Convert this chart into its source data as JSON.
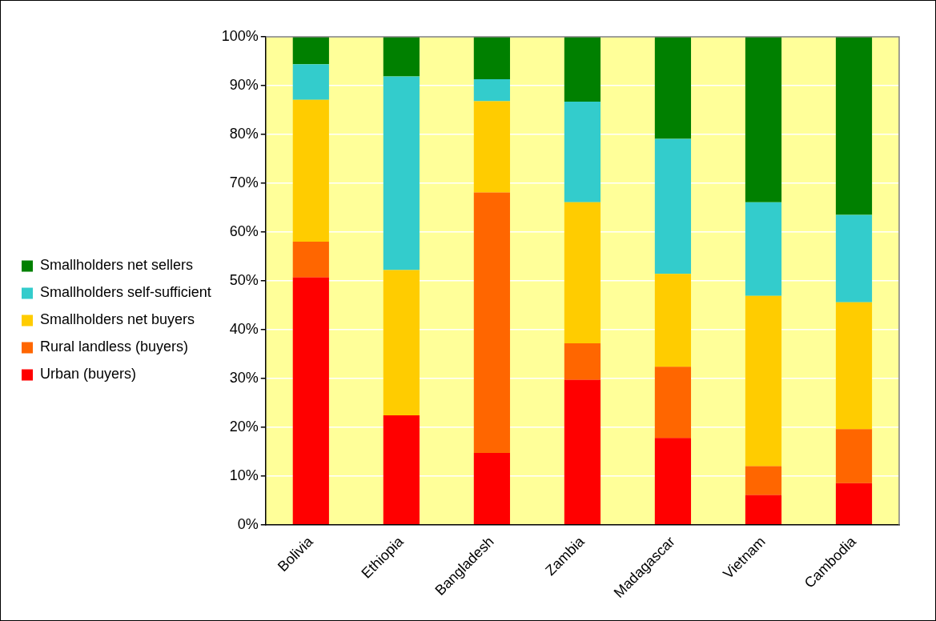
{
  "chart_data": {
    "type": "bar",
    "stacked": true,
    "categories": [
      "Bolivia",
      "Ethiopia",
      "Bangladesh",
      "Zambia",
      "Madagascar",
      "Vietnam",
      "Cambodia"
    ],
    "series": [
      {
        "name": "Urban (buyers)",
        "color": "#ff0000",
        "values": [
          50.7,
          22.4,
          14.7,
          29.7,
          17.8,
          6.1,
          8.5
        ]
      },
      {
        "name": "Rural landless (buyers)",
        "color": "#ff6600",
        "values": [
          7.3,
          0,
          53.4,
          7.5,
          14.6,
          5.9,
          11.1
        ]
      },
      {
        "name": "Smallholders net buyers",
        "color": "#ffcc00",
        "values": [
          29.1,
          29.8,
          18.7,
          28.9,
          19.0,
          34.9,
          26.0
        ]
      },
      {
        "name": "Smallholders self-sufficient",
        "color": "#33cccc",
        "values": [
          7.3,
          39.7,
          4.5,
          20.6,
          27.7,
          19.2,
          17.9
        ]
      },
      {
        "name": "Smallholders net sellers",
        "color": "#008000",
        "values": [
          5.6,
          8.1,
          8.7,
          13.3,
          20.9,
          33.9,
          36.5
        ]
      }
    ],
    "ylim": [
      0,
      100
    ],
    "yticks": [
      {
        "value": 0,
        "label": "0%"
      },
      {
        "value": 10,
        "label": "10%"
      },
      {
        "value": 20,
        "label": "20%"
      },
      {
        "value": 30,
        "label": "30%"
      },
      {
        "value": 40,
        "label": "40%"
      },
      {
        "value": 50,
        "label": "50%"
      },
      {
        "value": 60,
        "label": "60%"
      },
      {
        "value": 70,
        "label": "70%"
      },
      {
        "value": 80,
        "label": "80%"
      },
      {
        "value": 90,
        "label": "90%"
      },
      {
        "value": 100,
        "label": "100%"
      }
    ],
    "grid": "y",
    "legend": "left"
  }
}
